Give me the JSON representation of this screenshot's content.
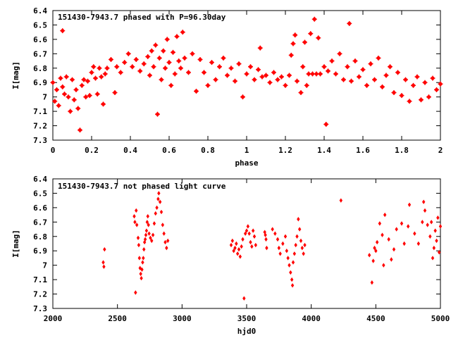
{
  "chart_data": [
    {
      "type": "scatter",
      "title": "151430-7943.7 phased with P=96.30day",
      "xlabel": "phase",
      "ylabel": "I[mag]",
      "xlim": [
        0,
        2
      ],
      "ylim": [
        7.3,
        6.4
      ],
      "x_ticks": [
        "0",
        "0.2",
        "0.4",
        "0.6",
        "0.8",
        "1",
        "1.2",
        "1.4",
        "1.6",
        "1.8",
        "2"
      ],
      "y_ticks": [
        "6.4",
        "6.5",
        "6.6",
        "6.7",
        "6.8",
        "6.9",
        "7",
        "7.1",
        "7.2",
        "7.3"
      ],
      "marker_color": "#ff0000",
      "points": [
        [
          0.0,
          6.9
        ],
        [
          0.01,
          7.03
        ],
        [
          0.02,
          6.95
        ],
        [
          0.03,
          7.06
        ],
        [
          0.04,
          6.87
        ],
        [
          0.05,
          6.93
        ],
        [
          0.05,
          6.54
        ],
        [
          0.06,
          6.98
        ],
        [
          0.07,
          6.86
        ],
        [
          0.08,
          7.0
        ],
        [
          0.09,
          7.1
        ],
        [
          0.1,
          6.88
        ],
        [
          0.11,
          7.02
        ],
        [
          0.12,
          6.95
        ],
        [
          0.13,
          7.08
        ],
        [
          0.14,
          7.23
        ],
        [
          0.15,
          6.92
        ],
        [
          0.16,
          6.88
        ],
        [
          0.17,
          7.0
        ],
        [
          0.18,
          6.89
        ],
        [
          0.19,
          6.99
        ],
        [
          0.2,
          6.83
        ],
        [
          0.21,
          6.79
        ],
        [
          0.22,
          6.87
        ],
        [
          0.23,
          6.98
        ],
        [
          0.24,
          6.8
        ],
        [
          0.25,
          6.86
        ],
        [
          0.26,
          7.05
        ],
        [
          0.27,
          6.84
        ],
        [
          0.28,
          6.8
        ],
        [
          0.3,
          6.74
        ],
        [
          0.32,
          6.97
        ],
        [
          0.33,
          6.79
        ],
        [
          0.35,
          6.83
        ],
        [
          0.37,
          6.76
        ],
        [
          0.39,
          6.7
        ],
        [
          0.41,
          6.79
        ],
        [
          0.43,
          6.74
        ],
        [
          0.45,
          6.82
        ],
        [
          0.47,
          6.77
        ],
        [
          0.49,
          6.72
        ],
        [
          0.5,
          6.85
        ],
        [
          0.51,
          6.68
        ],
        [
          0.52,
          6.79
        ],
        [
          0.53,
          6.64
        ],
        [
          0.54,
          7.12
        ],
        [
          0.55,
          6.73
        ],
        [
          0.56,
          6.88
        ],
        [
          0.57,
          6.68
        ],
        [
          0.58,
          6.8
        ],
        [
          0.59,
          6.6
        ],
        [
          0.6,
          6.76
        ],
        [
          0.61,
          6.92
        ],
        [
          0.62,
          6.69
        ],
        [
          0.63,
          6.84
        ],
        [
          0.64,
          6.58
        ],
        [
          0.65,
          6.75
        ],
        [
          0.66,
          6.8
        ],
        [
          0.67,
          6.55
        ],
        [
          0.68,
          6.73
        ],
        [
          0.7,
          6.83
        ],
        [
          0.72,
          6.7
        ],
        [
          0.74,
          6.96
        ],
        [
          0.76,
          6.74
        ],
        [
          0.78,
          6.83
        ],
        [
          0.8,
          6.92
        ],
        [
          0.82,
          6.76
        ],
        [
          0.84,
          6.88
        ],
        [
          0.86,
          6.79
        ],
        [
          0.88,
          6.73
        ],
        [
          0.9,
          6.85
        ],
        [
          0.92,
          6.8
        ],
        [
          0.94,
          6.89
        ],
        [
          0.96,
          6.77
        ],
        [
          0.98,
          7.0
        ],
        [
          1.0,
          6.84
        ],
        [
          1.02,
          6.79
        ],
        [
          1.04,
          6.88
        ],
        [
          1.06,
          6.81
        ],
        [
          1.07,
          6.66
        ],
        [
          1.08,
          6.86
        ],
        [
          1.1,
          6.85
        ],
        [
          1.12,
          6.9
        ],
        [
          1.14,
          6.83
        ],
        [
          1.16,
          6.88
        ],
        [
          1.18,
          6.86
        ],
        [
          1.2,
          6.92
        ],
        [
          1.22,
          6.85
        ],
        [
          1.23,
          6.71
        ],
        [
          1.24,
          6.63
        ],
        [
          1.25,
          6.57
        ],
        [
          1.26,
          6.89
        ],
        [
          1.28,
          6.97
        ],
        [
          1.29,
          6.79
        ],
        [
          1.3,
          6.62
        ],
        [
          1.31,
          6.92
        ],
        [
          1.32,
          6.84
        ],
        [
          1.33,
          6.56
        ],
        [
          1.34,
          6.84
        ],
        [
          1.35,
          6.46
        ],
        [
          1.36,
          6.84
        ],
        [
          1.37,
          6.59
        ],
        [
          1.38,
          6.84
        ],
        [
          1.4,
          6.79
        ],
        [
          1.41,
          7.19
        ],
        [
          1.42,
          6.82
        ],
        [
          1.44,
          6.75
        ],
        [
          1.46,
          6.84
        ],
        [
          1.48,
          6.7
        ],
        [
          1.5,
          6.88
        ],
        [
          1.52,
          6.79
        ],
        [
          1.53,
          6.49
        ],
        [
          1.54,
          6.89
        ],
        [
          1.56,
          6.75
        ],
        [
          1.58,
          6.86
        ],
        [
          1.6,
          6.81
        ],
        [
          1.62,
          6.92
        ],
        [
          1.64,
          6.77
        ],
        [
          1.66,
          6.88
        ],
        [
          1.68,
          6.73
        ],
        [
          1.7,
          6.93
        ],
        [
          1.72,
          6.85
        ],
        [
          1.74,
          6.79
        ],
        [
          1.76,
          6.97
        ],
        [
          1.78,
          6.83
        ],
        [
          1.8,
          6.99
        ],
        [
          1.82,
          6.88
        ],
        [
          1.84,
          7.03
        ],
        [
          1.86,
          6.92
        ],
        [
          1.88,
          6.86
        ],
        [
          1.9,
          7.02
        ],
        [
          1.92,
          6.9
        ],
        [
          1.94,
          7.0
        ],
        [
          1.96,
          6.87
        ],
        [
          1.98,
          6.95
        ],
        [
          2.0,
          6.91
        ]
      ]
    },
    {
      "type": "scatter",
      "title": "151430-7943.7 not phased light curve",
      "xlabel": "hjd0",
      "ylabel": "I[mag]",
      "xlim": [
        2000,
        5000
      ],
      "ylim": [
        7.3,
        6.4
      ],
      "x_ticks": [
        "2000",
        "2500",
        "3000",
        "3500",
        "4000",
        "4500",
        "5000"
      ],
      "y_ticks": [
        "6.4",
        "6.5",
        "6.6",
        "6.7",
        "6.8",
        "6.9",
        "7",
        "7.1",
        "7.2",
        "7.3"
      ],
      "marker_color": "#ff0000",
      "points": [
        [
          2390,
          6.98
        ],
        [
          2395,
          7.01
        ],
        [
          2400,
          6.89
        ],
        [
          2630,
          6.66
        ],
        [
          2635,
          6.7
        ],
        [
          2640,
          7.19
        ],
        [
          2645,
          6.62
        ],
        [
          2650,
          6.72
        ],
        [
          2660,
          6.81
        ],
        [
          2665,
          6.86
        ],
        [
          2670,
          6.95
        ],
        [
          2675,
          7.02
        ],
        [
          2680,
          7.06
        ],
        [
          2685,
          7.09
        ],
        [
          2690,
          7.03
        ],
        [
          2695,
          6.98
        ],
        [
          2700,
          6.95
        ],
        [
          2705,
          6.89
        ],
        [
          2710,
          6.84
        ],
        [
          2715,
          6.82
        ],
        [
          2720,
          6.79
        ],
        [
          2725,
          6.76
        ],
        [
          2730,
          6.7
        ],
        [
          2735,
          6.66
        ],
        [
          2740,
          6.72
        ],
        [
          2745,
          6.78
        ],
        [
          2755,
          6.81
        ],
        [
          2765,
          6.83
        ],
        [
          2775,
          6.79
        ],
        [
          2785,
          6.71
        ],
        [
          2795,
          6.64
        ],
        [
          2805,
          6.6
        ],
        [
          2815,
          6.54
        ],
        [
          2820,
          6.5
        ],
        [
          2830,
          6.56
        ],
        [
          2840,
          6.63
        ],
        [
          2850,
          6.72
        ],
        [
          2860,
          6.78
        ],
        [
          2870,
          6.84
        ],
        [
          2880,
          6.88
        ],
        [
          2890,
          6.83
        ],
        [
          3380,
          6.86
        ],
        [
          3390,
          6.83
        ],
        [
          3400,
          6.9
        ],
        [
          3410,
          6.88
        ],
        [
          3420,
          6.85
        ],
        [
          3430,
          6.92
        ],
        [
          3440,
          6.89
        ],
        [
          3450,
          6.94
        ],
        [
          3460,
          6.87
        ],
        [
          3470,
          6.82
        ],
        [
          3480,
          7.23
        ],
        [
          3490,
          6.78
        ],
        [
          3500,
          6.76
        ],
        [
          3510,
          6.73
        ],
        [
          3520,
          6.78
        ],
        [
          3530,
          6.84
        ],
        [
          3540,
          6.87
        ],
        [
          3550,
          6.76
        ],
        [
          3560,
          6.8
        ],
        [
          3570,
          6.86
        ],
        [
          3640,
          6.77
        ],
        [
          3645,
          6.79
        ],
        [
          3650,
          6.82
        ],
        [
          3655,
          6.88
        ],
        [
          3700,
          6.75
        ],
        [
          3720,
          6.78
        ],
        [
          3740,
          6.82
        ],
        [
          3750,
          6.88
        ],
        [
          3760,
          6.92
        ],
        [
          3780,
          6.85
        ],
        [
          3800,
          6.8
        ],
        [
          3810,
          6.9
        ],
        [
          3820,
          6.95
        ],
        [
          3830,
          7.0
        ],
        [
          3840,
          7.05
        ],
        [
          3850,
          7.1
        ],
        [
          3855,
          7.14
        ],
        [
          3860,
          6.98
        ],
        [
          3870,
          6.92
        ],
        [
          3880,
          6.86
        ],
        [
          3890,
          6.8
        ],
        [
          3900,
          6.68
        ],
        [
          3910,
          6.75
        ],
        [
          3920,
          6.83
        ],
        [
          3930,
          6.88
        ],
        [
          3940,
          6.92
        ],
        [
          3950,
          6.86
        ],
        [
          4230,
          6.55
        ],
        [
          4450,
          6.93
        ],
        [
          4470,
          7.12
        ],
        [
          4480,
          6.97
        ],
        [
          4490,
          6.88
        ],
        [
          4500,
          6.9
        ],
        [
          4510,
          6.84
        ],
        [
          4530,
          6.71
        ],
        [
          4550,
          6.79
        ],
        [
          4560,
          7.0
        ],
        [
          4570,
          6.65
        ],
        [
          4600,
          6.82
        ],
        [
          4620,
          6.96
        ],
        [
          4640,
          6.89
        ],
        [
          4660,
          6.75
        ],
        [
          4700,
          6.71
        ],
        [
          4720,
          6.85
        ],
        [
          4750,
          6.73
        ],
        [
          4760,
          6.58
        ],
        [
          4800,
          6.78
        ],
        [
          4830,
          6.85
        ],
        [
          4860,
          6.7
        ],
        [
          4870,
          6.56
        ],
        [
          4880,
          6.62
        ],
        [
          4900,
          6.72
        ],
        [
          4920,
          6.8
        ],
        [
          4930,
          6.7
        ],
        [
          4940,
          6.95
        ],
        [
          4950,
          6.88
        ],
        [
          4960,
          6.76
        ],
        [
          4970,
          6.83
        ],
        [
          4980,
          6.67
        ],
        [
          4990,
          6.91
        ],
        [
          5000,
          6.73
        ]
      ]
    }
  ]
}
